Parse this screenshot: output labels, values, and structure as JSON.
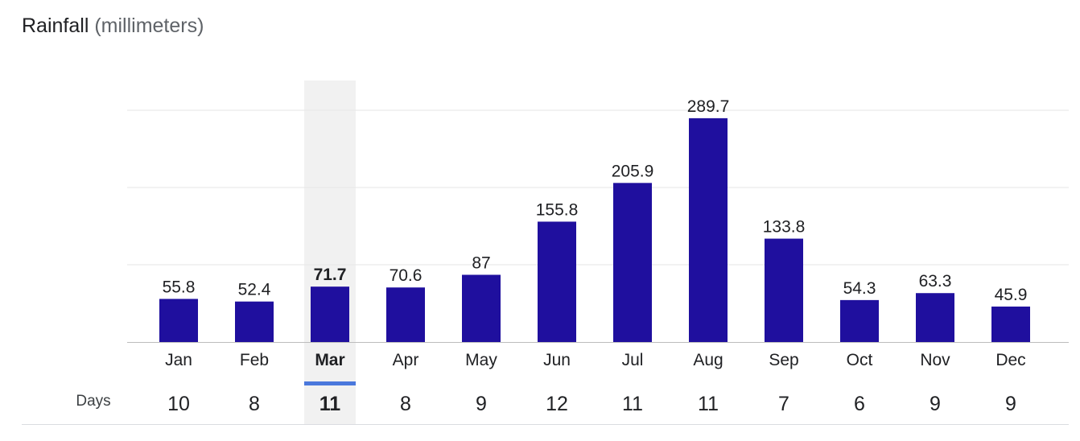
{
  "header": {
    "title": "Rainfall",
    "unit": "(millimeters)"
  },
  "days_row_label": "Days",
  "selected_index": 2,
  "colors": {
    "bar": "#1f0f9e",
    "highlight_bg": "#f1f1f1",
    "indicator": "#4a78dc",
    "grid": "#e6e6e6",
    "baseline": "#bdbdbd"
  },
  "chart_data": {
    "type": "bar",
    "title": "Rainfall",
    "ylabel": "(millimeters)",
    "categories": [
      "Jan",
      "Feb",
      "Mar",
      "Apr",
      "May",
      "Jun",
      "Jul",
      "Aug",
      "Sep",
      "Oct",
      "Nov",
      "Dec"
    ],
    "values": [
      55.8,
      52.4,
      71.7,
      70.6,
      87,
      155.8,
      205.9,
      289.7,
      133.8,
      54.3,
      63.3,
      45.9
    ],
    "value_labels": [
      "55.8",
      "52.4",
      "71.7",
      "70.6",
      "87",
      "155.8",
      "205.9",
      "289.7",
      "133.8",
      "54.3",
      "63.3",
      "45.9"
    ],
    "days": [
      "10",
      "8",
      "11",
      "8",
      "9",
      "12",
      "11",
      "11",
      "7",
      "6",
      "9",
      "9"
    ],
    "ylim": [
      0,
      300
    ],
    "grid": true
  }
}
